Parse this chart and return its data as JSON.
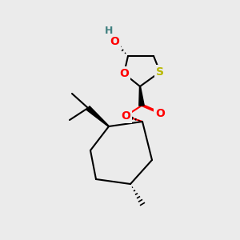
{
  "bg_color": "#ebebeb",
  "atom_colors": {
    "O": "#ff0000",
    "S": "#b8b800",
    "H": "#408080",
    "C": "#000000"
  },
  "bond_color": "#000000",
  "line_width": 1.5,
  "figsize": [
    3.0,
    3.0
  ],
  "dpi": 100
}
